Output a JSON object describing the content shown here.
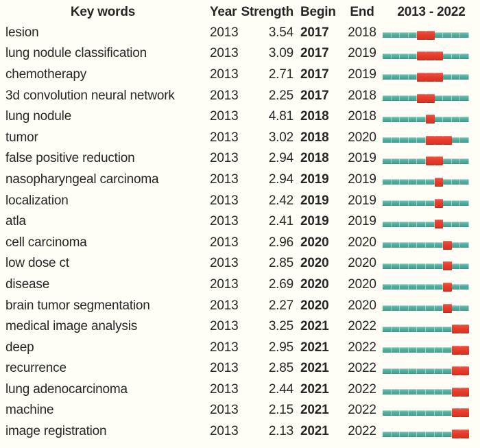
{
  "colors": {
    "bar_teal": "#4fae9e",
    "bar_burst_red": "#e63c2d",
    "background": "#fffdf6",
    "text": "#262626"
  },
  "chart_data": {
    "type": "table",
    "description": "Keyword citation burst table with burst timeline bars",
    "headers": {
      "keywords": "Key words",
      "year": "Year",
      "strength": "Strength",
      "begin": "Begin",
      "end": "End",
      "timeline": "2013 - 2022"
    },
    "timeline": {
      "start": 2013,
      "end": 2022,
      "label": "2013 - 2022"
    },
    "rows": [
      {
        "keyword": "lesion",
        "year": "2013",
        "strength": "3.54",
        "begin": "2017",
        "end": "2018"
      },
      {
        "keyword": "lung nodule classification",
        "year": "2013",
        "strength": "3.09",
        "begin": "2017",
        "end": "2019"
      },
      {
        "keyword": "chemotherapy",
        "year": "2013",
        "strength": "2.71",
        "begin": "2017",
        "end": "2019"
      },
      {
        "keyword": "3d convolution neural network",
        "year": "2013",
        "strength": "2.25",
        "begin": "2017",
        "end": "2018"
      },
      {
        "keyword": "lung nodule",
        "year": "2013",
        "strength": "4.81",
        "begin": "2018",
        "end": "2018"
      },
      {
        "keyword": "tumor",
        "year": "2013",
        "strength": "3.02",
        "begin": "2018",
        "end": "2020"
      },
      {
        "keyword": "false positive reduction",
        "year": "2013",
        "strength": "2.94",
        "begin": "2018",
        "end": "2019"
      },
      {
        "keyword": "nasopharyngeal carcinoma",
        "year": "2013",
        "strength": "2.94",
        "begin": "2019",
        "end": "2019"
      },
      {
        "keyword": "localization",
        "year": "2013",
        "strength": "2.42",
        "begin": "2019",
        "end": "2019"
      },
      {
        "keyword": "atla",
        "year": "2013",
        "strength": "2.41",
        "begin": "2019",
        "end": "2019"
      },
      {
        "keyword": "cell carcinoma",
        "year": "2013",
        "strength": "2.96",
        "begin": "2020",
        "end": "2020"
      },
      {
        "keyword": "low dose ct",
        "year": "2013",
        "strength": "2.85",
        "begin": "2020",
        "end": "2020"
      },
      {
        "keyword": "disease",
        "year": "2013",
        "strength": "2.69",
        "begin": "2020",
        "end": "2020"
      },
      {
        "keyword": "brain tumor segmentation",
        "year": "2013",
        "strength": "2.27",
        "begin": "2020",
        "end": "2020"
      },
      {
        "keyword": "medical image analysis",
        "year": "2013",
        "strength": "3.25",
        "begin": "2021",
        "end": "2022"
      },
      {
        "keyword": "deep",
        "year": "2013",
        "strength": "2.95",
        "begin": "2021",
        "end": "2022"
      },
      {
        "keyword": "recurrence",
        "year": "2013",
        "strength": "2.85",
        "begin": "2021",
        "end": "2022"
      },
      {
        "keyword": "lung adenocarcinoma",
        "year": "2013",
        "strength": "2.44",
        "begin": "2021",
        "end": "2022"
      },
      {
        "keyword": "machine",
        "year": "2013",
        "strength": "2.15",
        "begin": "2021",
        "end": "2022"
      },
      {
        "keyword": "image registration",
        "year": "2013",
        "strength": "2.13",
        "begin": "2021",
        "end": "2022"
      }
    ]
  }
}
